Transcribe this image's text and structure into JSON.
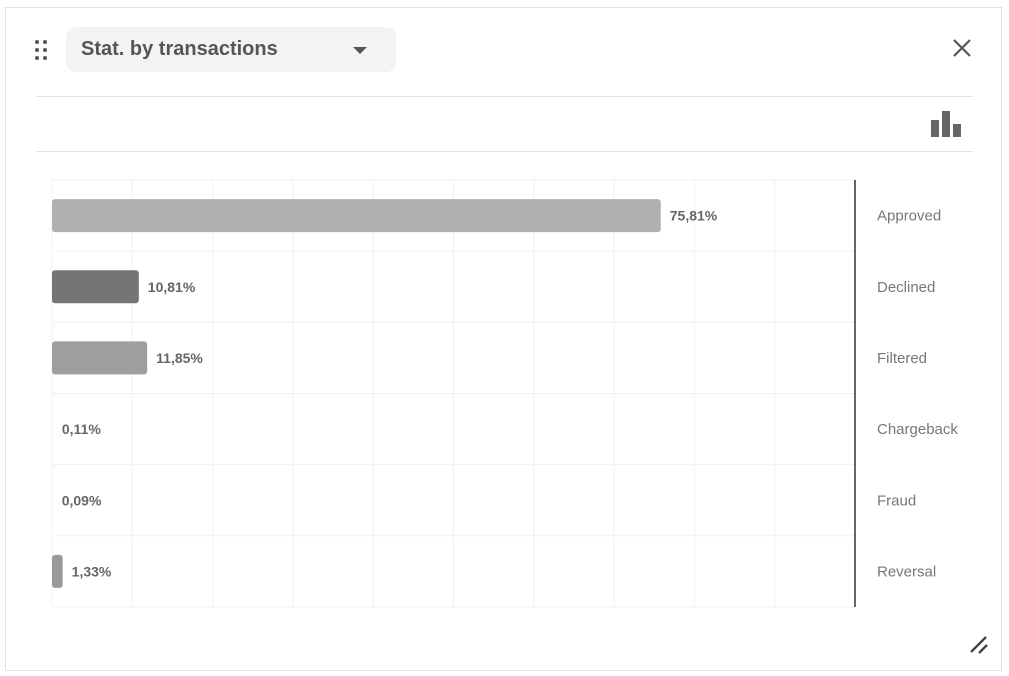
{
  "widget": {
    "title": "Stat. by transactions",
    "icons": {
      "drag": "drag-handle-icon",
      "dropdown": "caret-down-icon",
      "close": "close-icon",
      "chart_type": "bar-chart-icon",
      "resize": "resize-handle-icon"
    }
  },
  "chart_data": {
    "type": "bar",
    "orientation": "horizontal",
    "categories": [
      "Approved",
      "Declined",
      "Filtered",
      "Chargeback",
      "Fraud",
      "Reversal"
    ],
    "values": [
      75.81,
      10.81,
      11.85,
      0.11,
      0.09,
      1.33
    ],
    "value_labels": [
      "75,81%",
      "10,81%",
      "11,85%",
      "0,11%",
      "0,09%",
      "1,33%"
    ],
    "colors": [
      "#b0b0b0",
      "#757575",
      "#9e9e9e",
      "#b0b0b0",
      "#9e9e9e",
      "#999999"
    ],
    "xlim": [
      0,
      100
    ],
    "grid": true,
    "category_axis": "right",
    "title": "",
    "xlabel": "",
    "ylabel": ""
  }
}
